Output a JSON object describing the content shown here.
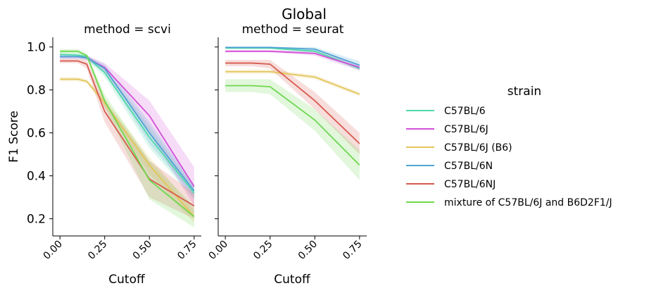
{
  "title": "Global",
  "xlabel": "Cutoff",
  "ylabel": "F1 Score",
  "legend": {
    "title": "strain"
  },
  "chart_data": {
    "type": "line",
    "title": "Global",
    "xlabel": "Cutoff",
    "ylabel": "F1 Score",
    "xlim": [
      -0.04,
      0.79
    ],
    "ylim": [
      0.12,
      1.045
    ],
    "xticks": [
      0.0,
      0.25,
      0.5,
      0.75
    ],
    "xtick_labels": [
      "0.00",
      "0.25",
      "0.50",
      "0.75"
    ],
    "yticks": [
      0.2,
      0.4,
      0.6,
      0.8,
      1.0
    ],
    "ytick_labels": [
      "0.2",
      "0.4",
      "0.6",
      "0.8",
      "1.0"
    ],
    "x": [
      0.0,
      0.1,
      0.15,
      0.25,
      0.5,
      0.75
    ],
    "legend_position": "right",
    "grid": false,
    "series_styles": [
      {
        "name": "C57BL/6",
        "color": "#4fd8a8"
      },
      {
        "name": "C57BL/6J",
        "color": "#d34fd8"
      },
      {
        "name": "C57BL/6J (B6)",
        "color": "#e3c55a"
      },
      {
        "name": "C57BL/6N",
        "color": "#4fa3d3"
      },
      {
        "name": "C57BL/6NJ",
        "color": "#d85a4f"
      },
      {
        "name": "mixture of C57BL/6J and B6D2F1/J",
        "color": "#6fd84f"
      }
    ],
    "panels": [
      {
        "title": "method = scvi",
        "series": [
          {
            "name": "C57BL/6",
            "values": [
              0.965,
              0.962,
              0.955,
              0.88,
              0.58,
              0.32
            ],
            "lower": [
              0.955,
              0.952,
              0.94,
              0.86,
              0.53,
              0.29
            ],
            "upper": [
              0.975,
              0.972,
              0.965,
              0.9,
              0.63,
              0.35
            ]
          },
          {
            "name": "C57BL/6J",
            "values": [
              0.955,
              0.955,
              0.95,
              0.905,
              0.68,
              0.35
            ],
            "lower": [
              0.945,
              0.945,
              0.94,
              0.885,
              0.6,
              0.26
            ],
            "upper": [
              0.965,
              0.965,
              0.96,
              0.925,
              0.75,
              0.44
            ]
          },
          {
            "name": "C57BL/6J (B6)",
            "values": [
              0.85,
              0.85,
              0.84,
              0.74,
              0.45,
              0.21
            ],
            "lower": [
              0.84,
              0.84,
              0.83,
              0.72,
              0.41,
              0.18
            ],
            "upper": [
              0.86,
              0.86,
              0.85,
              0.76,
              0.49,
              0.24
            ]
          },
          {
            "name": "C57BL/6N",
            "values": [
              0.955,
              0.955,
              0.95,
              0.9,
              0.6,
              0.33
            ],
            "lower": [
              0.945,
              0.945,
              0.94,
              0.88,
              0.55,
              0.3
            ],
            "upper": [
              0.965,
              0.965,
              0.96,
              0.92,
              0.65,
              0.36
            ]
          },
          {
            "name": "C57BL/6NJ",
            "values": [
              0.935,
              0.935,
              0.92,
              0.7,
              0.385,
              0.26
            ],
            "lower": [
              0.925,
              0.925,
              0.9,
              0.65,
              0.3,
              0.2
            ],
            "upper": [
              0.945,
              0.945,
              0.94,
              0.75,
              0.47,
              0.32
            ]
          },
          {
            "name": "mixture of C57BL/6J and B6D2F1/J",
            "values": [
              0.98,
              0.98,
              0.96,
              0.75,
              0.38,
              0.21
            ],
            "lower": [
              0.97,
              0.97,
              0.95,
              0.72,
              0.29,
              0.16
            ],
            "upper": [
              0.99,
              0.99,
              0.97,
              0.78,
              0.47,
              0.26
            ]
          }
        ]
      },
      {
        "title": "method = seurat",
        "series": [
          {
            "name": "C57BL/6",
            "values": [
              0.995,
              0.995,
              0.995,
              0.995,
              0.98,
              0.9
            ],
            "lower": [
              0.99,
              0.99,
              0.99,
              0.99,
              0.97,
              0.89
            ],
            "upper": [
              1.0,
              1.0,
              1.0,
              1.0,
              0.99,
              0.91
            ]
          },
          {
            "name": "C57BL/6J",
            "values": [
              0.98,
              0.98,
              0.98,
              0.98,
              0.97,
              0.905
            ],
            "lower": [
              0.975,
              0.975,
              0.975,
              0.975,
              0.96,
              0.89
            ],
            "upper": [
              0.985,
              0.985,
              0.985,
              0.985,
              0.98,
              0.92
            ]
          },
          {
            "name": "C57BL/6J (B6)",
            "values": [
              0.885,
              0.885,
              0.885,
              0.885,
              0.86,
              0.78
            ],
            "lower": [
              0.875,
              0.875,
              0.875,
              0.875,
              0.85,
              0.77
            ],
            "upper": [
              0.895,
              0.895,
              0.895,
              0.895,
              0.87,
              0.79
            ]
          },
          {
            "name": "C57BL/6N",
            "values": [
              0.998,
              0.998,
              0.998,
              0.998,
              0.99,
              0.915
            ],
            "lower": [
              0.993,
              0.993,
              0.993,
              0.993,
              0.98,
              0.895
            ],
            "upper": [
              1.0,
              1.0,
              1.0,
              1.0,
              1.0,
              0.935
            ]
          },
          {
            "name": "C57BL/6NJ",
            "values": [
              0.925,
              0.925,
              0.925,
              0.92,
              0.75,
              0.55
            ],
            "lower": [
              0.91,
              0.91,
              0.91,
              0.9,
              0.71,
              0.5
            ],
            "upper": [
              0.94,
              0.94,
              0.94,
              0.94,
              0.79,
              0.6
            ]
          },
          {
            "name": "mixture of C57BL/6J and B6D2F1/J",
            "values": [
              0.82,
              0.82,
              0.82,
              0.815,
              0.66,
              0.45
            ],
            "lower": [
              0.79,
              0.79,
              0.79,
              0.78,
              0.61,
              0.38
            ],
            "upper": [
              0.85,
              0.85,
              0.85,
              0.85,
              0.71,
              0.52
            ]
          }
        ]
      }
    ]
  }
}
